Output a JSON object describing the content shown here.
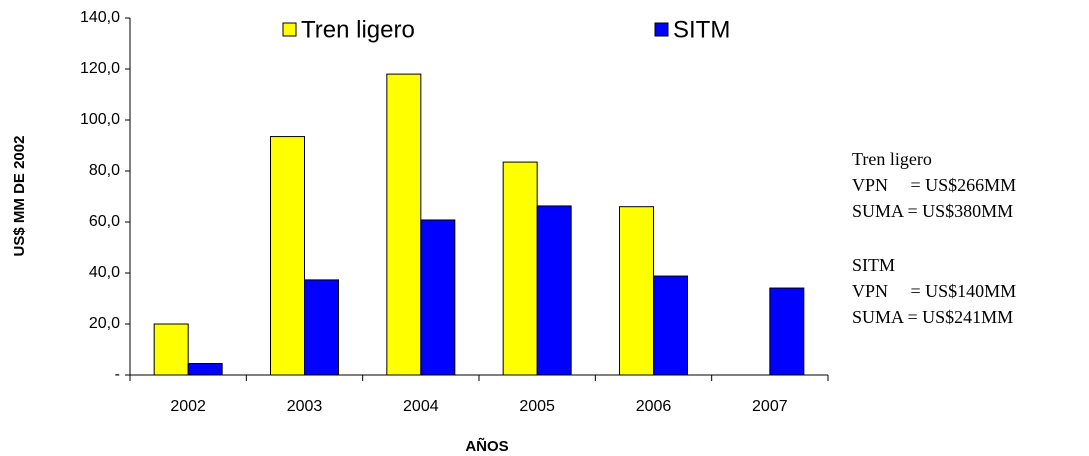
{
  "chart_data": {
    "type": "bar",
    "categories": [
      "2002",
      "2003",
      "2004",
      "2005",
      "2006",
      "2007"
    ],
    "series": [
      {
        "name": "Tren ligero",
        "color": "#ffff00",
        "values": [
          20,
          93.5,
          118,
          83.5,
          66,
          null
        ]
      },
      {
        "name": "SITM",
        "color": "#0000ff",
        "values": [
          4.5,
          37.3,
          60.8,
          66.3,
          38.8,
          34.1
        ]
      }
    ],
    "ylim": [
      0,
      140
    ],
    "yticks": [
      {
        "value": 0,
        "label": "-"
      },
      {
        "value": 20,
        "label": "20,0"
      },
      {
        "value": 40,
        "label": "40,0"
      },
      {
        "value": 60,
        "label": "60,0"
      },
      {
        "value": 80,
        "label": "80,0"
      },
      {
        "value": 100,
        "label": "100,0"
      },
      {
        "value": 120,
        "label": "120,0"
      },
      {
        "value": 140,
        "label": "140,0"
      }
    ],
    "y_label": "US$ MM DE 2002",
    "x_label": "AÑOS",
    "legend": "top",
    "annotations": [
      "Tren ligero",
      "VPN     = US$266MM",
      "SUMA = US$380MM",
      "SITM",
      "VPN     = US$140MM",
      "SUMA = US$241MM"
    ]
  }
}
